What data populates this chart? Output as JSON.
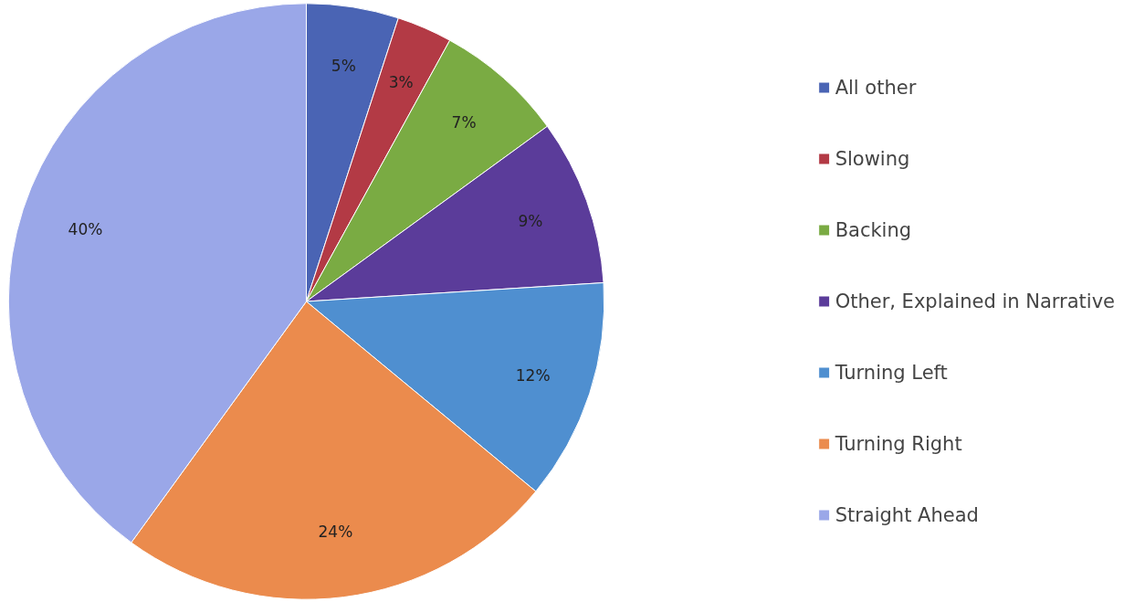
{
  "chart_data": {
    "type": "pie",
    "categories": [
      "All other",
      "Slowing",
      "Backing",
      "Other, Explained in Narrative",
      "Turning Left",
      "Turning Right",
      "Straight Ahead"
    ],
    "values": [
      5,
      3,
      7,
      9,
      12,
      24,
      40
    ],
    "colors": [
      "#4a64b4",
      "#b33a45",
      "#7aab43",
      "#5b3c9a",
      "#4f8fd0",
      "#eb8b4d",
      "#9aa7e8"
    ],
    "value_labels": [
      "5%",
      "3%",
      "7%",
      "9%",
      "12%",
      "24%",
      "40%"
    ],
    "legend": "right"
  }
}
